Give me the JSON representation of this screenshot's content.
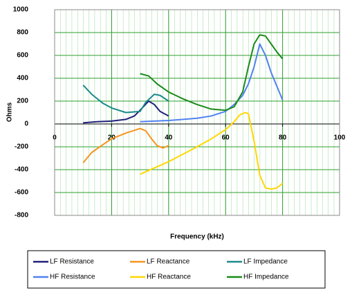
{
  "chart_data": {
    "type": "line",
    "y_label": "Ohms",
    "x_label": "Frequency (kHz)",
    "xlim": [
      0,
      100
    ],
    "xticks": [
      0,
      20,
      40,
      60,
      80,
      100
    ],
    "ylim": [
      -800,
      1000
    ],
    "yticks": [
      -800,
      -600,
      -400,
      -200,
      0,
      200,
      400,
      600,
      800,
      1000
    ],
    "grid": true,
    "series": [
      {
        "name": "LF Resistance",
        "color": "#1f1f7a",
        "x": [
          10,
          15,
          20,
          25,
          28,
          30,
          33,
          35,
          37,
          40
        ],
        "values": [
          10,
          20,
          25,
          40,
          70,
          120,
          200,
          170,
          110,
          70
        ]
      },
      {
        "name": "LF Reactance",
        "color": "#f7941d",
        "x": [
          10,
          13,
          17,
          20,
          25,
          30,
          32,
          34,
          36,
          38,
          40
        ],
        "values": [
          -340,
          -250,
          -180,
          -130,
          -80,
          -40,
          -60,
          -130,
          -190,
          -210,
          -190
        ]
      },
      {
        "name": "LF Impedance",
        "color": "#1a8a8a",
        "x": [
          10,
          13,
          17,
          20,
          25,
          30,
          32,
          35,
          37,
          40
        ],
        "values": [
          340,
          260,
          180,
          140,
          100,
          110,
          190,
          260,
          250,
          200
        ]
      },
      {
        "name": "HF Resistance",
        "color": "#4f81f0",
        "x": [
          30,
          40,
          50,
          55,
          60,
          63,
          66,
          68,
          70,
          72,
          74,
          76,
          80
        ],
        "values": [
          20,
          30,
          50,
          70,
          110,
          170,
          250,
          350,
          500,
          700,
          600,
          450,
          210
        ]
      },
      {
        "name": "HF Reactance",
        "color": "#ffd700",
        "x": [
          30,
          40,
          50,
          55,
          60,
          63,
          65,
          67,
          68,
          70,
          72,
          74,
          76,
          78,
          80
        ],
        "values": [
          -440,
          -330,
          -200,
          -130,
          -50,
          20,
          80,
          100,
          90,
          -150,
          -450,
          -560,
          -570,
          -560,
          -520
        ]
      },
      {
        "name": "HF Impedance",
        "color": "#1a8a1a",
        "x": [
          30,
          33,
          36,
          40,
          45,
          50,
          55,
          60,
          63,
          66,
          68,
          70,
          72,
          74,
          76,
          78,
          80
        ],
        "values": [
          440,
          420,
          350,
          280,
          220,
          170,
          130,
          120,
          150,
          280,
          500,
          700,
          780,
          770,
          700,
          630,
          570
        ]
      }
    ]
  }
}
